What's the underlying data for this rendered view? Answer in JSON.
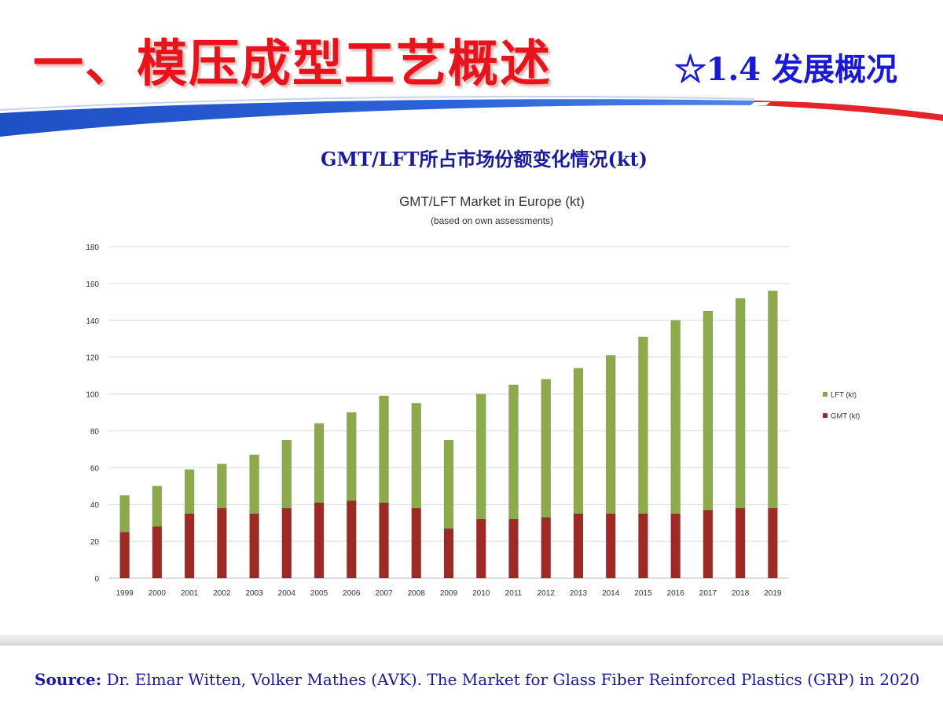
{
  "slide": {
    "title": "一、模压成型工艺概述",
    "section_label": "☆1.4 发展概况",
    "chart_heading": "GMT/LFT所占市场份额变化情况(kt)",
    "source_label": "Source:",
    "source_text": " Dr. Elmar Witten, Volker Mathes (AVK). The Market for Glass Fiber Reinforced Plastics (GRP) in 2020"
  },
  "colors": {
    "title_red": "#e8141b",
    "heading_blue": "#1a1aa0",
    "lft_green": "#8caa4c",
    "gmt_red": "#9e2a26"
  },
  "chart_data": {
    "type": "bar",
    "stacked": true,
    "title": "GMT/LFT Market in Europe (kt)",
    "subtitle": "(based on own assessments)",
    "xlabel": "",
    "ylabel": "",
    "ylim": [
      0,
      180
    ],
    "yticks": [
      0,
      20,
      40,
      60,
      80,
      100,
      120,
      140,
      160,
      180
    ],
    "grid": true,
    "legend_position": "right",
    "categories": [
      "1999",
      "2000",
      "2001",
      "2002",
      "2003",
      "2004",
      "2005",
      "2006",
      "2007",
      "2008",
      "2009",
      "2010",
      "2011",
      "2012",
      "2013",
      "2014",
      "2015",
      "2016",
      "2017",
      "2018",
      "2019"
    ],
    "series": [
      {
        "name": "GMT (kt)",
        "color": "#9e2a26",
        "values": [
          25,
          28,
          35,
          38,
          35,
          38,
          41,
          42,
          41,
          38,
          27,
          32,
          32,
          33,
          35,
          35,
          35,
          35,
          37,
          38,
          38
        ]
      },
      {
        "name": "LFT (kt)",
        "color": "#8caa4c",
        "values": [
          20,
          22,
          24,
          24,
          32,
          37,
          43,
          48,
          58,
          57,
          48,
          68,
          73,
          75,
          79,
          86,
          96,
          105,
          108,
          114,
          118
        ]
      }
    ],
    "legend_order": [
      "LFT (kt)",
      "GMT (kt)"
    ]
  }
}
